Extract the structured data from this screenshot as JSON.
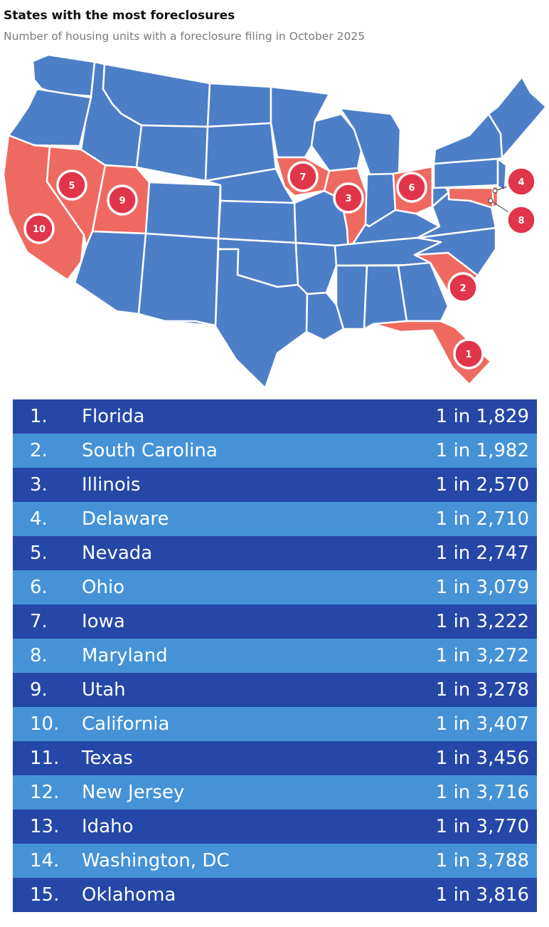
{
  "title": "States with the most foreclosures",
  "subtitle": "Number of housing units with a foreclosure filing in October 2025",
  "colors": {
    "state_default": "#4d7fc8",
    "state_highlight": "#ee6a60",
    "marker": "#e0354a",
    "row_dark": "#2547a7",
    "row_light": "#4593d6"
  },
  "map": {
    "highlighted_states": [
      "Florida",
      "South Carolina",
      "Illinois",
      "Delaware",
      "Nevada",
      "Ohio",
      "Iowa",
      "Maryland",
      "Utah",
      "California"
    ],
    "markers": [
      {
        "label": "1",
        "state": "Florida"
      },
      {
        "label": "2",
        "state": "South Carolina"
      },
      {
        "label": "3",
        "state": "Illinois"
      },
      {
        "label": "4",
        "state": "Delaware"
      },
      {
        "label": "5",
        "state": "Nevada"
      },
      {
        "label": "6",
        "state": "Ohio"
      },
      {
        "label": "7",
        "state": "Iowa"
      },
      {
        "label": "8",
        "state": "Maryland"
      },
      {
        "label": "9",
        "state": "Utah"
      },
      {
        "label": "10",
        "state": "California"
      }
    ]
  },
  "rows": [
    {
      "rank": "1.",
      "state": "Florida",
      "value": "1 in 1,829"
    },
    {
      "rank": "2.",
      "state": "South Carolina",
      "value": "1 in 1,982"
    },
    {
      "rank": "3.",
      "state": "Illinois",
      "value": "1 in 2,570"
    },
    {
      "rank": "4.",
      "state": "Delaware",
      "value": "1 in 2,710"
    },
    {
      "rank": "5.",
      "state": "Nevada",
      "value": "1 in 2,747"
    },
    {
      "rank": "6.",
      "state": "Ohio",
      "value": "1 in 3,079"
    },
    {
      "rank": "7.",
      "state": "Iowa",
      "value": "1 in 3,222"
    },
    {
      "rank": "8.",
      "state": "Maryland",
      "value": "1 in 3,272"
    },
    {
      "rank": "9.",
      "state": "Utah",
      "value": "1 in 3,278"
    },
    {
      "rank": "10.",
      "state": "California",
      "value": "1 in 3,407"
    },
    {
      "rank": "11.",
      "state": "Texas",
      "value": "1 in 3,456"
    },
    {
      "rank": "12.",
      "state": "New Jersey",
      "value": "1 in 3,716"
    },
    {
      "rank": "13.",
      "state": "Idaho",
      "value": "1 in 3,770"
    },
    {
      "rank": "14.",
      "state": "Washington, DC",
      "value": "1 in 3,788"
    },
    {
      "rank": "15.",
      "state": "Oklahoma",
      "value": "1 in 3,816"
    }
  ]
}
